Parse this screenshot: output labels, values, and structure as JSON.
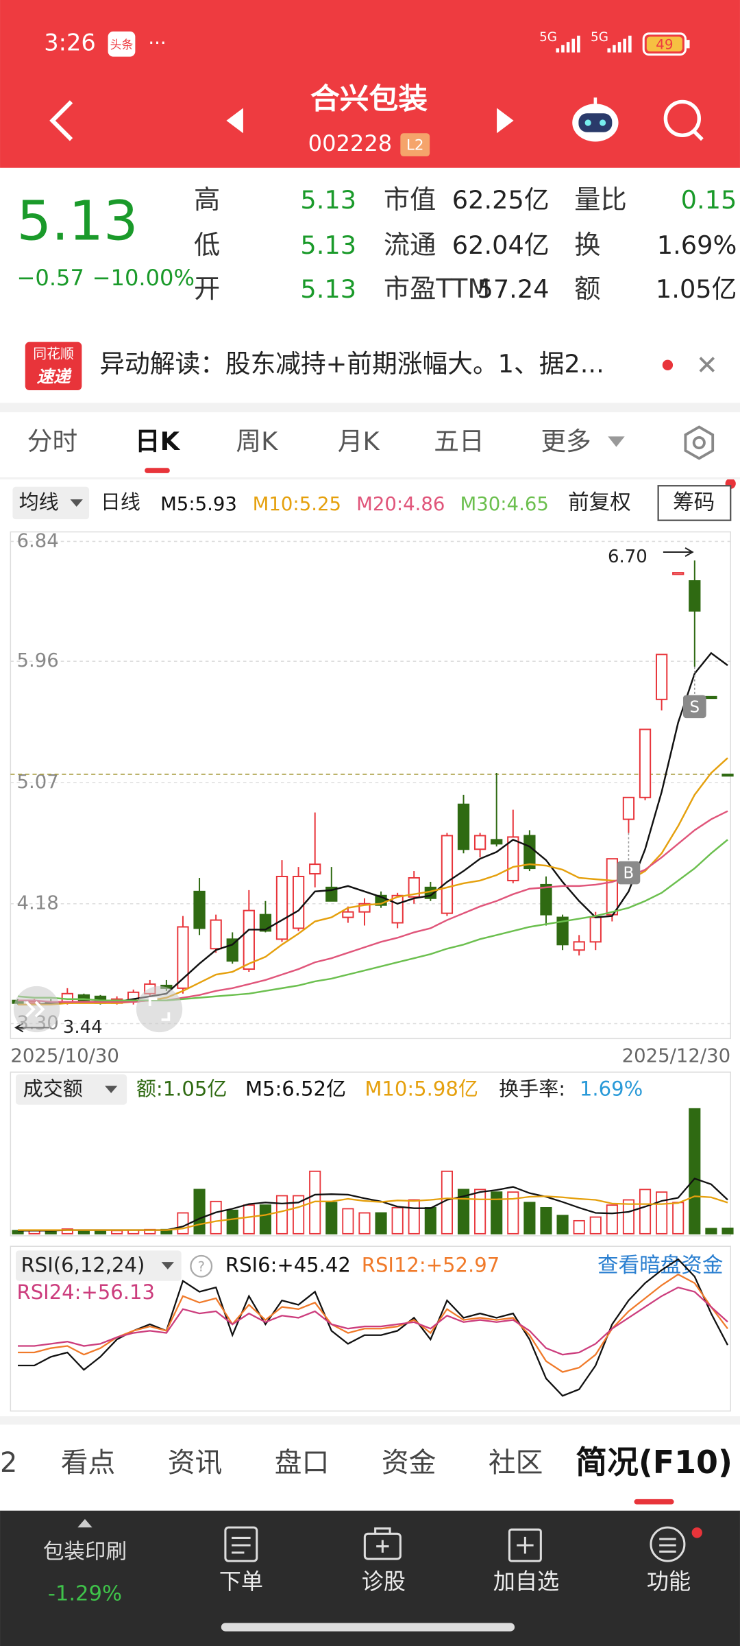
{
  "status": {
    "time": "3:26",
    "badge": "头条",
    "dots": "···",
    "net1": "5G",
    "net2": "5G",
    "battery": "49"
  },
  "header": {
    "title": "合兴包装",
    "code": "002228",
    "level": "L2"
  },
  "quote": {
    "price": "5.13",
    "change": "−0.57",
    "pct": "−10.00%",
    "fields": [
      {
        "label": "高",
        "value": "5.13"
      },
      {
        "label": "市值",
        "value": "62.25亿"
      },
      {
        "label": "量比",
        "value": "0.15"
      },
      {
        "label": "低",
        "value": "5.13"
      },
      {
        "label": "流通",
        "value": "62.04亿"
      },
      {
        "label": "换",
        "value": "1.69%"
      },
      {
        "label": "开",
        "value": "5.13"
      },
      {
        "label": "市盈TTM",
        "value": "57.24"
      },
      {
        "label": "额",
        "value": "1.05亿"
      }
    ]
  },
  "news": {
    "logo_top": "同花顺",
    "logo_bottom": "速递",
    "text": "异动解读：股东减持+前期涨幅大。1、据2..."
  },
  "tabs": [
    "分时",
    "日K",
    "周K",
    "月K",
    "五日",
    "更多"
  ],
  "toolbar": {
    "ma": "均线",
    "period": "日线",
    "adjust": "前复权",
    "chips": "筹码"
  },
  "chart": {
    "type": "candlestick",
    "ylim": [
      3.19,
      6.91
    ],
    "yticks": [
      6.84,
      5.96,
      5.07,
      4.18,
      {
        "value": 3.3,
        "label": "3.30"
      }
    ],
    "grid": true,
    "up_color": "#e8343a",
    "down_color": "#2f6a12",
    "candles": [
      [
        3.47,
        3.48,
        3.44,
        3.45
      ],
      [
        3.45,
        3.48,
        3.44,
        3.46
      ],
      [
        3.46,
        3.48,
        3.44,
        3.45
      ],
      [
        3.45,
        3.56,
        3.44,
        3.52
      ],
      [
        3.51,
        3.52,
        3.45,
        3.47
      ],
      [
        3.5,
        3.51,
        3.44,
        3.45
      ],
      [
        3.45,
        3.5,
        3.44,
        3.48
      ],
      [
        3.46,
        3.55,
        3.44,
        3.53
      ],
      [
        3.52,
        3.62,
        3.5,
        3.59
      ],
      [
        3.58,
        3.62,
        3.54,
        3.56
      ],
      [
        3.56,
        4.09,
        3.52,
        4.01
      ],
      [
        4.27,
        4.37,
        3.95,
        4.0
      ],
      [
        3.85,
        4.1,
        3.82,
        4.06
      ],
      [
        3.92,
        3.97,
        3.74,
        3.76
      ],
      [
        3.7,
        4.28,
        3.68,
        4.13
      ],
      [
        4.1,
        4.2,
        3.97,
        3.98
      ],
      [
        3.92,
        4.5,
        3.9,
        4.38
      ],
      [
        4.0,
        4.45,
        3.98,
        4.38
      ],
      [
        4.4,
        4.85,
        4.3,
        4.47
      ],
      [
        4.3,
        4.45,
        4.2,
        4.2
      ],
      [
        4.08,
        4.16,
        4.04,
        4.12
      ],
      [
        4.12,
        4.22,
        4.02,
        4.18
      ],
      [
        4.24,
        4.27,
        4.15,
        4.17
      ],
      [
        4.04,
        4.26,
        4.0,
        4.24
      ],
      [
        4.23,
        4.42,
        4.18,
        4.37
      ],
      [
        4.3,
        4.34,
        4.2,
        4.22
      ],
      [
        4.11,
        4.7,
        4.09,
        4.68
      ],
      [
        4.91,
        4.98,
        4.55,
        4.58
      ],
      [
        4.58,
        4.7,
        4.52,
        4.68
      ],
      [
        4.65,
        5.14,
        4.6,
        4.62
      ],
      [
        4.35,
        4.87,
        4.33,
        4.67
      ],
      [
        4.68,
        4.72,
        4.42,
        4.44
      ],
      [
        4.32,
        4.38,
        4.02,
        4.1
      ],
      [
        4.08,
        4.1,
        3.84,
        3.88
      ],
      [
        3.84,
        3.95,
        3.8,
        3.9
      ],
      [
        3.9,
        4.12,
        3.84,
        4.08
      ],
      [
        4.1,
        4.51,
        4.05,
        4.51
      ],
      [
        4.8,
        4.96,
        4.7,
        4.96
      ],
      [
        4.96,
        5.46,
        4.94,
        5.46
      ],
      [
        5.68,
        6.01,
        5.6,
        6.01
      ],
      [
        6.61,
        6.61,
        6.61,
        6.61
      ],
      [
        6.55,
        6.7,
        5.92,
        6.33
      ],
      [
        5.7,
        5.7,
        5.7,
        5.7
      ],
      [
        5.13,
        5.13,
        5.13,
        5.13
      ]
    ],
    "ma": [
      {
        "label": "M5:5.93",
        "color": "#111111",
        "values": [
          3.44,
          3.44,
          3.45,
          3.46,
          3.46,
          3.46,
          3.46,
          3.48,
          3.5,
          3.52,
          3.63,
          3.74,
          3.84,
          3.88,
          3.99,
          3.99,
          4.06,
          4.13,
          4.27,
          4.28,
          4.31,
          4.27,
          4.23,
          4.18,
          4.22,
          4.24,
          4.34,
          4.42,
          4.51,
          4.56,
          4.65,
          4.6,
          4.5,
          4.34,
          4.2,
          4.08,
          4.09,
          4.27,
          4.58,
          5.0,
          5.51,
          5.87,
          6.02,
          5.93
        ]
      },
      {
        "label": "M10:5.25",
        "color": "#e5a00d",
        "values": [
          3.44,
          3.44,
          3.44,
          3.45,
          3.45,
          3.45,
          3.45,
          3.46,
          3.47,
          3.49,
          3.54,
          3.6,
          3.66,
          3.68,
          3.74,
          3.79,
          3.88,
          3.96,
          4.05,
          4.08,
          4.15,
          4.17,
          4.18,
          4.23,
          4.25,
          4.27,
          4.3,
          4.33,
          4.35,
          4.39,
          4.45,
          4.47,
          4.46,
          4.43,
          4.37,
          4.36,
          4.35,
          4.35,
          4.42,
          4.55,
          4.75,
          4.98,
          5.14,
          5.25
        ]
      },
      {
        "label": "M20:4.86",
        "color": "#e0557a",
        "values": [
          3.47,
          3.47,
          3.46,
          3.46,
          3.46,
          3.46,
          3.46,
          3.46,
          3.47,
          3.47,
          3.49,
          3.51,
          3.54,
          3.56,
          3.59,
          3.62,
          3.66,
          3.7,
          3.75,
          3.78,
          3.82,
          3.86,
          3.9,
          3.93,
          3.97,
          4.0,
          4.06,
          4.11,
          4.16,
          4.2,
          4.25,
          4.29,
          4.3,
          4.31,
          4.31,
          4.32,
          4.34,
          4.38,
          4.43,
          4.52,
          4.62,
          4.72,
          4.8,
          4.86
        ]
      },
      {
        "label": "M30:4.65",
        "color": "#6bbf4e",
        "values": [
          3.5,
          3.49,
          3.49,
          3.48,
          3.48,
          3.47,
          3.47,
          3.47,
          3.47,
          3.47,
          3.48,
          3.49,
          3.5,
          3.51,
          3.52,
          3.54,
          3.56,
          3.58,
          3.61,
          3.63,
          3.66,
          3.69,
          3.72,
          3.75,
          3.78,
          3.81,
          3.85,
          3.88,
          3.92,
          3.95,
          3.98,
          4.01,
          4.03,
          4.05,
          4.07,
          4.09,
          4.12,
          4.15,
          4.2,
          4.26,
          4.35,
          4.44,
          4.55,
          4.65
        ]
      }
    ],
    "high_label": "6.70",
    "low_label": "3.44",
    "start_date": "2025/10/30",
    "end_date": "2025/12/30",
    "buy_marker": "B",
    "sell_marker": "S"
  },
  "volume": {
    "type": "bar",
    "title": "成交额",
    "amount": "额:1.05亿",
    "turnover_label": "换手率:",
    "turnover": "1.69%",
    "ylim": [
      0,
      25
    ],
    "values": [
      0.6,
      0.6,
      0.6,
      0.9,
      0.6,
      0.6,
      0.6,
      0.7,
      0.8,
      0.8,
      4.0,
      8.5,
      6.2,
      4.5,
      5.5,
      5.5,
      7.3,
      7.3,
      12.0,
      6.0,
      4.8,
      4.0,
      4.0,
      5.0,
      6.5,
      5.0,
      12.0,
      8.5,
      8.5,
      8.0,
      8.0,
      6.0,
      5.0,
      3.5,
      2.5,
      3.2,
      5.5,
      6.5,
      8.5,
      8.0,
      6.0,
      24.0,
      1.0,
      1.05
    ],
    "ma": [
      {
        "label": "M5:6.52亿",
        "color": "#111111",
        "values": [
          0.6,
          0.6,
          0.6,
          0.7,
          0.7,
          0.7,
          0.7,
          0.7,
          0.7,
          0.7,
          1.4,
          2.9,
          4.1,
          4.8,
          5.7,
          6.0,
          5.8,
          6.0,
          7.5,
          7.6,
          7.5,
          6.8,
          6.2,
          5.2,
          4.9,
          4.9,
          6.5,
          7.2,
          8.0,
          8.4,
          9.0,
          7.8,
          7.1,
          6.1,
          5.0,
          4.0,
          3.9,
          4.2,
          5.2,
          6.3,
          6.9,
          10.6,
          9.5,
          6.52
        ]
      },
      {
        "label": "M10:5.98亿",
        "color": "#e5a00d",
        "values": [
          0.7,
          0.7,
          0.7,
          0.7,
          0.7,
          0.7,
          0.7,
          0.7,
          0.7,
          0.7,
          1.0,
          1.8,
          2.4,
          2.8,
          3.2,
          3.6,
          4.3,
          5.1,
          6.2,
          6.2,
          6.7,
          6.3,
          6.1,
          6.4,
          6.3,
          6.5,
          6.8,
          6.7,
          6.6,
          6.6,
          6.7,
          7.1,
          7.2,
          7.0,
          6.7,
          6.5,
          5.8,
          5.7,
          5.7,
          5.7,
          5.9,
          7.2,
          7.0,
          5.98
        ]
      }
    ]
  },
  "rsi": {
    "type": "line",
    "title": "RSI(6,12,24)",
    "link": "查看暗盘资金",
    "ylim": [
      15,
      90
    ],
    "series": [
      {
        "label": "RSI6:+45.42",
        "color": "#111111",
        "values": [
          36,
          36,
          40,
          42,
          34,
          40,
          48,
          52,
          55,
          52,
          75,
          70,
          72,
          50,
          68,
          55,
          66,
          64,
          70,
          52,
          46,
          50,
          50,
          52,
          58,
          48,
          66,
          58,
          60,
          58,
          60,
          48,
          30,
          22,
          25,
          36,
          55,
          66,
          74,
          80,
          85,
          77,
          60,
          45.42
        ]
      },
      {
        "label": "RSI12:+52.97",
        "color": "#f07a2a",
        "values": [
          42,
          42,
          44,
          45,
          41,
          44,
          49,
          52,
          54,
          52,
          68,
          65,
          67,
          55,
          64,
          57,
          63,
          62,
          65,
          55,
          51,
          53,
          53,
          54,
          57,
          51,
          62,
          57,
          58,
          57,
          58,
          50,
          38,
          33,
          35,
          41,
          53,
          61,
          67,
          73,
          78,
          74,
          63,
          52.97
        ]
      },
      {
        "label": "RSI24:+56.13",
        "color": "#cc3d7d",
        "values": [
          45,
          45,
          46,
          47,
          45,
          46,
          49,
          51,
          52,
          51,
          62,
          60,
          61,
          55,
          60,
          56,
          59,
          58,
          61,
          55,
          53,
          54,
          54,
          55,
          56,
          53,
          59,
          56,
          57,
          56,
          57,
          52,
          44,
          41,
          42,
          46,
          53,
          58,
          63,
          68,
          72,
          70,
          63,
          56.13
        ]
      }
    ]
  },
  "bottom_tabs": [
    "2",
    "看点",
    "资讯",
    "盘口",
    "资金",
    "社区",
    "简况(F10)"
  ],
  "footer": {
    "sector": "包装印刷",
    "sector_change": "-1.29%",
    "actions": [
      "下单",
      "诊股",
      "加自选",
      "功能"
    ]
  }
}
